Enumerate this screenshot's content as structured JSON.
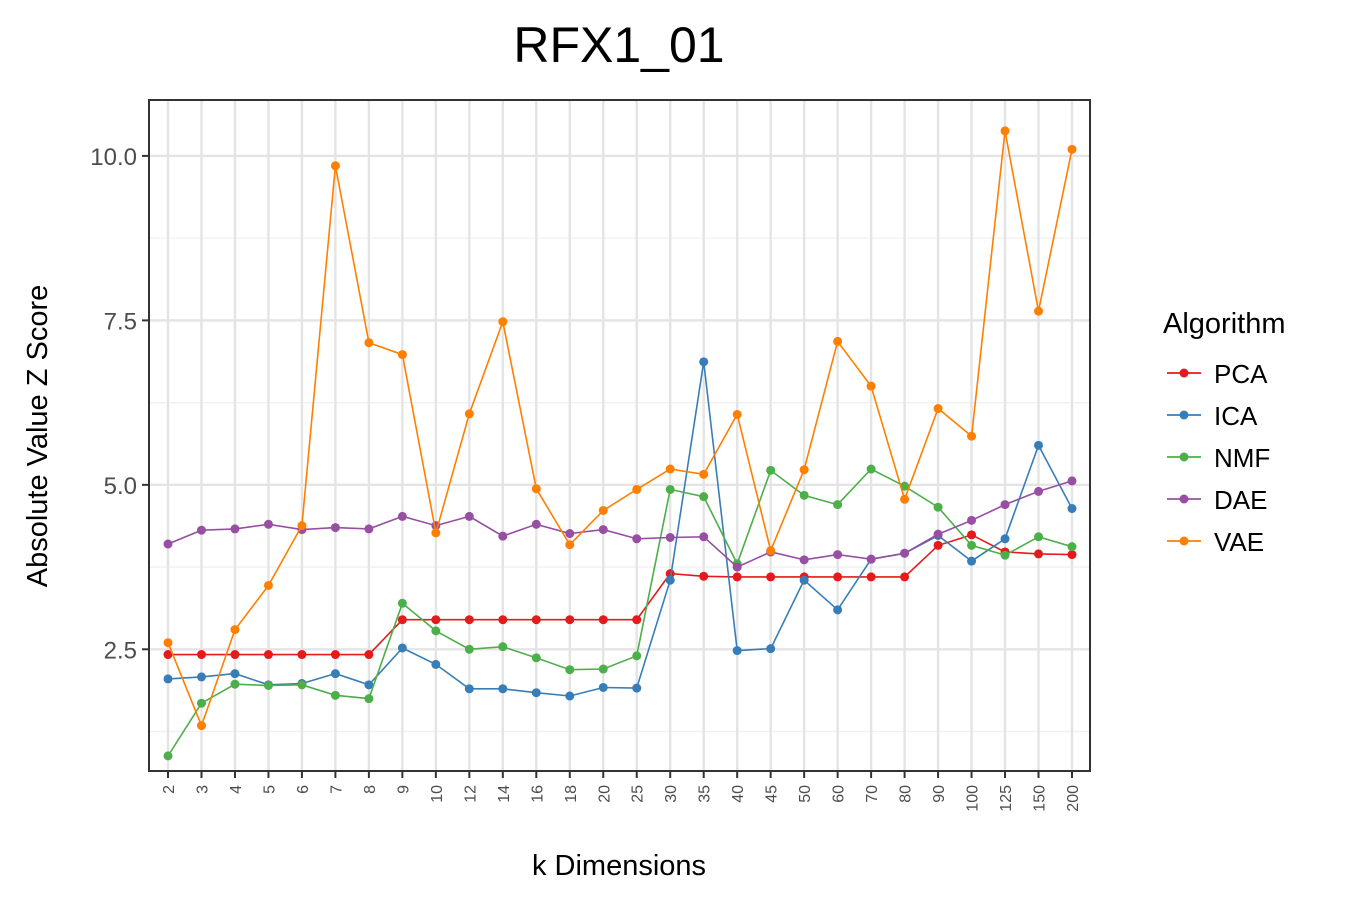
{
  "chart_data": {
    "type": "line",
    "title": "RFX1_01",
    "xlabel": "k Dimensions",
    "ylabel": "Absolute Value Z Score",
    "ylim": [
      0.65,
      10.85
    ],
    "yticks": [
      2.5,
      5.0,
      7.5,
      10.0
    ],
    "ytick_labels": [
      "2.5",
      "5.0",
      "7.5",
      "10.0"
    ],
    "grid": true,
    "legend_title": "Algorithm",
    "legend_position": "right",
    "categories": [
      "2",
      "3",
      "4",
      "5",
      "6",
      "7",
      "8",
      "9",
      "10",
      "12",
      "14",
      "16",
      "18",
      "20",
      "25",
      "30",
      "35",
      "40",
      "45",
      "50",
      "60",
      "70",
      "80",
      "90",
      "100",
      "125",
      "150",
      "200"
    ],
    "series": [
      {
        "name": "PCA",
        "color": "#E41A1C",
        "values": [
          2.42,
          2.42,
          2.42,
          2.42,
          2.42,
          2.42,
          2.42,
          2.95,
          2.95,
          2.95,
          2.95,
          2.95,
          2.95,
          2.95,
          2.95,
          3.65,
          3.61,
          3.6,
          3.6,
          3.6,
          3.6,
          3.6,
          3.6,
          4.08,
          4.24,
          3.98,
          3.95,
          3.94
        ]
      },
      {
        "name": "ICA",
        "color": "#377EB8",
        "values": [
          2.05,
          2.08,
          2.13,
          1.96,
          1.98,
          2.13,
          1.96,
          2.52,
          2.27,
          1.9,
          1.9,
          1.84,
          1.79,
          1.92,
          1.91,
          3.55,
          6.87,
          2.48,
          2.51,
          3.55,
          3.1,
          3.87,
          3.96,
          4.23,
          3.84,
          4.18,
          5.6,
          4.64
        ]
      },
      {
        "name": "NMF",
        "color": "#4DAF4A",
        "values": [
          0.88,
          1.68,
          1.97,
          1.95,
          1.96,
          1.8,
          1.75,
          3.2,
          2.78,
          2.5,
          2.54,
          2.37,
          2.19,
          2.2,
          2.4,
          4.93,
          4.82,
          3.8,
          5.22,
          4.84,
          4.7,
          5.24,
          4.98,
          4.66,
          4.08,
          3.93,
          4.21,
          4.06
        ]
      },
      {
        "name": "DAE",
        "color": "#984EA3",
        "values": [
          4.1,
          4.31,
          4.33,
          4.4,
          4.32,
          4.35,
          4.33,
          4.52,
          4.38,
          4.52,
          4.22,
          4.4,
          4.26,
          4.32,
          4.18,
          4.2,
          4.21,
          3.75,
          3.98,
          3.86,
          3.94,
          3.87,
          3.96,
          4.25,
          4.46,
          4.7,
          4.9,
          5.06
        ]
      },
      {
        "name": "VAE",
        "color": "#FF7F00",
        "values": [
          2.6,
          1.34,
          2.8,
          3.47,
          4.38,
          9.85,
          7.16,
          6.98,
          4.27,
          6.08,
          7.48,
          4.94,
          4.09,
          4.61,
          4.93,
          5.24,
          5.16,
          6.07,
          4.0,
          5.23,
          7.18,
          6.5,
          4.78,
          6.16,
          5.74,
          10.38,
          7.64,
          10.1
        ]
      }
    ]
  }
}
